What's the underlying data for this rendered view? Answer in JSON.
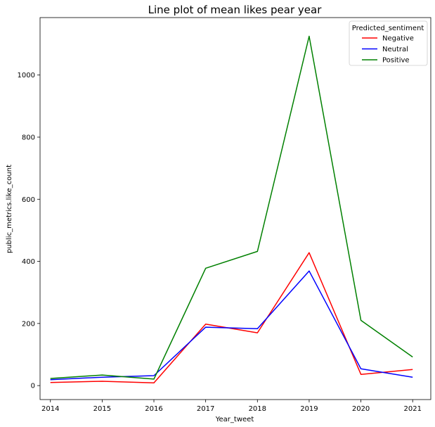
{
  "chart_data": {
    "type": "line",
    "title": "Line plot of mean likes pear year",
    "xlabel": "Year_tweet",
    "ylabel": "public_metrics.like_count",
    "x": [
      2014,
      2015,
      2016,
      2017,
      2018,
      2019,
      2020,
      2021
    ],
    "xlim": [
      2013.8,
      2021.35
    ],
    "ylim": [
      -45,
      1185
    ],
    "yticks": [
      0,
      200,
      400,
      600,
      800,
      1000
    ],
    "grid": false,
    "legend": {
      "title": "Predicted_sentiment",
      "placement": "top-right"
    },
    "series": [
      {
        "name": "Negative",
        "color": "#ff0000",
        "values": [
          10,
          14,
          9,
          198,
          170,
          428,
          36,
          52
        ]
      },
      {
        "name": "Neutral",
        "color": "#0000ff",
        "values": [
          19,
          27,
          32,
          188,
          183,
          369,
          54,
          27
        ]
      },
      {
        "name": "Positive",
        "color": "#008000",
        "values": [
          23,
          34,
          21,
          378,
          432,
          1125,
          210,
          92
        ]
      }
    ]
  }
}
